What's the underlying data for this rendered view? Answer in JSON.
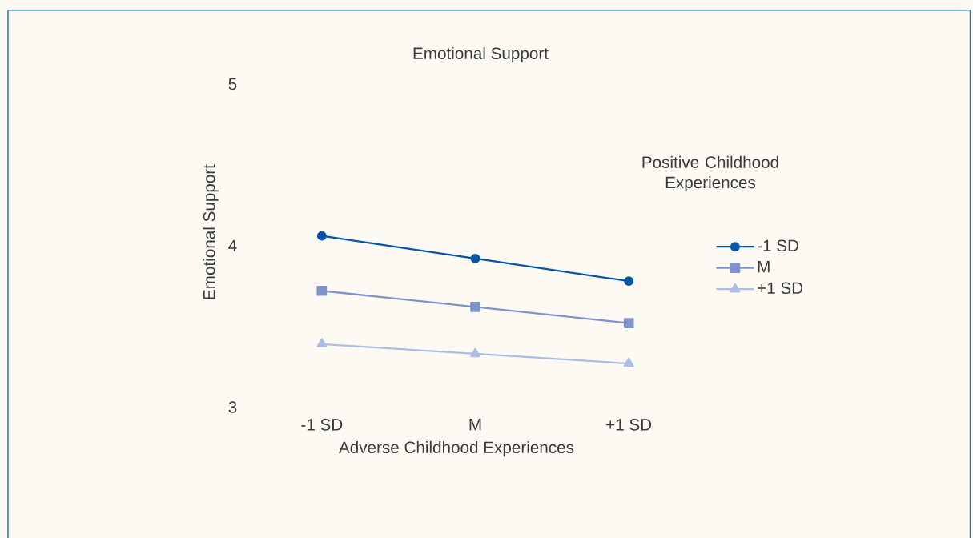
{
  "chart_data": {
    "type": "line",
    "title": "Emotional Support",
    "xlabel": "Adverse Childhood Experiences",
    "ylabel": "Emotional Support",
    "legend_title": "Positive Childhood Experiences",
    "categories": [
      "-1 SD",
      "M",
      "+1 SD"
    ],
    "series": [
      {
        "name": "-1 SD",
        "color": "#0057a8",
        "marker": "circle",
        "values": [
          4.06,
          3.92,
          3.78
        ]
      },
      {
        "name": "M",
        "color": "#7f93cc",
        "marker": "square",
        "values": [
          3.72,
          3.62,
          3.52
        ]
      },
      {
        "name": "+1 SD",
        "color": "#adbde3",
        "marker": "triangle",
        "values": [
          3.39,
          3.33,
          3.27
        ]
      }
    ],
    "ylim": [
      3,
      5
    ],
    "yticks": [
      3,
      4,
      5
    ],
    "grid": false,
    "legend": "right",
    "line_style": "solid"
  }
}
